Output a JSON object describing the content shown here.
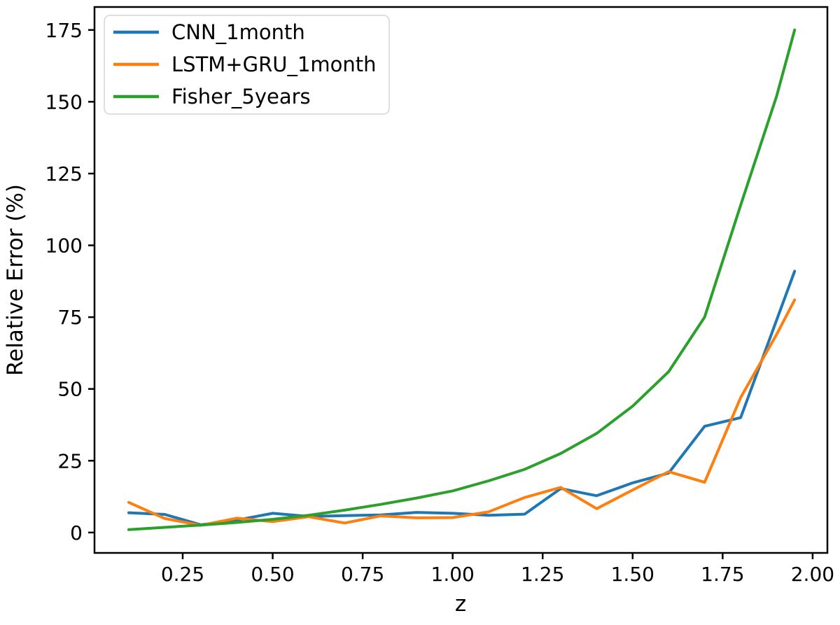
{
  "figure": {
    "background_color": "#ffffff",
    "plot_background_color": "#ffffff",
    "spine_color": "#000000"
  },
  "legend": {
    "position": "upper left",
    "frame_color": "#d5d5d5",
    "fill_color": "#ffffff"
  },
  "chart_data": {
    "type": "line",
    "title": "",
    "xlabel": "z",
    "ylabel": "Relative Error (%)",
    "xlim": [
      0.005,
      2.041
    ],
    "ylim": [
      -7.1,
      183.0
    ],
    "grid": false,
    "legend_position": "upper left",
    "line_width": 4,
    "xticks": {
      "values": [
        0.25,
        0.5,
        0.75,
        1.0,
        1.25,
        1.5,
        1.75,
        2.0
      ],
      "labels": [
        "0.25",
        "0.50",
        "0.75",
        "1.00",
        "1.25",
        "1.50",
        "1.75",
        "2.00"
      ]
    },
    "yticks": {
      "values": [
        0,
        25,
        50,
        75,
        100,
        125,
        150,
        175
      ],
      "labels": [
        "0",
        "25",
        "50",
        "75",
        "100",
        "125",
        "150",
        "175"
      ]
    },
    "x": [
      0.1,
      0.2,
      0.3,
      0.4,
      0.5,
      0.6,
      0.7,
      0.8,
      0.9,
      1.0,
      1.1,
      1.2,
      1.3,
      1.4,
      1.5,
      1.6,
      1.7,
      1.8,
      1.9,
      1.95
    ],
    "series": [
      {
        "name": "CNN_1month",
        "color": "#1f77b4",
        "values": [
          6.9,
          6.3,
          2.7,
          4.3,
          6.7,
          5.6,
          5.9,
          6.1,
          7.0,
          6.7,
          6.0,
          6.4,
          15.3,
          12.8,
          17.3,
          20.7,
          37.0,
          40.0,
          74.0,
          91.0
        ]
      },
      {
        "name": "LSTM+GRU_1month",
        "color": "#ff7f0e",
        "values": [
          10.5,
          4.9,
          2.5,
          5.0,
          3.8,
          5.5,
          3.3,
          5.8,
          5.1,
          5.2,
          7.2,
          12.2,
          15.7,
          8.3,
          14.8,
          21.2,
          17.5,
          47.0,
          69.0,
          81.0
        ]
      },
      {
        "name": "Fisher_5years",
        "color": "#2ca02c",
        "values": [
          1.0,
          1.8,
          2.6,
          3.5,
          4.6,
          6.0,
          7.8,
          9.8,
          12.0,
          14.5,
          18.0,
          22.0,
          27.5,
          34.5,
          44.0,
          56.0,
          75.0,
          114.0,
          152.0,
          175.0
        ]
      }
    ]
  }
}
